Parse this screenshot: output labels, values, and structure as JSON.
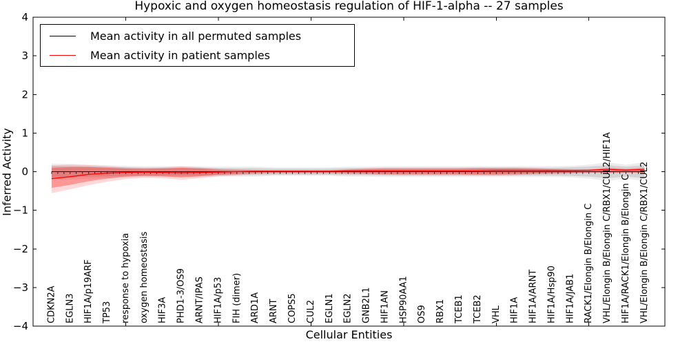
{
  "figure": {
    "title": "Hypoxic and oxygen homeostasis regulation of HIF-1-alpha -- 27 samples",
    "xlabel": "Cellular Entities",
    "ylabel": "Inferred Activity"
  },
  "legend": {
    "position": "upper left",
    "entries": [
      {
        "label": "Mean activity in all permuted samples",
        "color": "#000000"
      },
      {
        "label": "Mean activity in patient samples",
        "color": "#ff0000"
      }
    ]
  },
  "chart_data": {
    "type": "line",
    "title": "Hypoxic and oxygen homeostasis regulation of HIF-1-alpha -- 27 samples",
    "xlabel": "Cellular Entities",
    "ylabel": "Inferred Activity",
    "ylim": [
      -4,
      4
    ],
    "xlim": [
      0,
      34.1
    ],
    "grid": false,
    "legend_position": "upper left",
    "yticks": [
      {
        "v": 4,
        "label": "4"
      },
      {
        "v": 3,
        "label": "3"
      },
      {
        "v": 2,
        "label": "2"
      },
      {
        "v": 1,
        "label": "1"
      },
      {
        "v": 0,
        "label": "0"
      },
      {
        "v": -1,
        "label": "−1"
      },
      {
        "v": -2,
        "label": "−2"
      },
      {
        "v": -3,
        "label": "−3"
      },
      {
        "v": -4,
        "label": "−4"
      }
    ],
    "xtick_positions": [
      5,
      10,
      15,
      20,
      25,
      30
    ],
    "zero_line_tick_count": 97,
    "categories": [
      "CDKN2A",
      "EGLN3",
      "HIF1A/p19ARF",
      "TP53",
      "response to hypoxia",
      "oxygen homeostasis",
      "HIF3A",
      "PHD1-3/OS9",
      "ARNT/IPAS",
      "HIF1A/p53",
      "FIH (dimer)",
      "ARD1A",
      "ARNT",
      "COPS5",
      "CUL2",
      "EGLN1",
      "EGLN2",
      "GNB2L1",
      "HIF1AN",
      "HSP90AA1",
      "OS9",
      "RBX1",
      "TCEB1",
      "TCEB2",
      "VHL",
      "HIF1A",
      "HIF1A/ARNT",
      "HIF1A/Hsp90",
      "HIF1A/JAB1",
      "RACK1/Elongin B/Elongin C",
      "VHL/Elongin B/Elongin C/RBX1/CUL2/HIF1A",
      "HIF1A/RACK1/Elongin B/Elongin C",
      "VHL/Elongin B/Elongin C/RBX1/CUL2"
    ],
    "series": [
      {
        "name": "Mean activity in all permuted samples",
        "color": "#000000",
        "values": [
          0,
          0,
          0,
          0,
          0,
          0,
          0,
          0,
          0,
          0,
          0,
          0,
          0,
          0,
          0,
          0,
          0,
          0,
          0,
          0,
          0,
          0,
          0,
          0,
          0,
          0,
          0,
          0,
          0,
          0,
          0,
          0,
          0
        ],
        "band_inner": {
          "fill": "rgba(0,0,0,0.10)",
          "upper": [
            0.15,
            0.14,
            0.13,
            0.12,
            0.11,
            0.1,
            0.1,
            0.1,
            0.1,
            0.09,
            0.09,
            0.09,
            0.08,
            0.08,
            0.08,
            0.08,
            0.09,
            0.09,
            0.1,
            0.1,
            0.1,
            0.1,
            0.1,
            0.1,
            0.1,
            0.1,
            0.1,
            0.1,
            0.11,
            0.13,
            0.17,
            0.13,
            0.17
          ],
          "lower": [
            -0.15,
            -0.14,
            -0.13,
            -0.12,
            -0.11,
            -0.1,
            -0.1,
            -0.1,
            -0.1,
            -0.09,
            -0.09,
            -0.09,
            -0.08,
            -0.08,
            -0.08,
            -0.08,
            -0.09,
            -0.09,
            -0.1,
            -0.1,
            -0.1,
            -0.1,
            -0.1,
            -0.1,
            -0.1,
            -0.1,
            -0.1,
            -0.1,
            -0.11,
            -0.13,
            -0.17,
            -0.13,
            -0.17
          ]
        },
        "band_outer": {
          "fill": "rgba(0,0,0,0.07)",
          "upper": [
            0.21,
            0.2,
            0.18,
            0.17,
            0.15,
            0.14,
            0.14,
            0.14,
            0.14,
            0.13,
            0.13,
            0.13,
            0.11,
            0.11,
            0.11,
            0.11,
            0.13,
            0.13,
            0.14,
            0.14,
            0.14,
            0.14,
            0.14,
            0.14,
            0.14,
            0.14,
            0.14,
            0.14,
            0.15,
            0.18,
            0.24,
            0.18,
            0.24
          ],
          "lower": [
            -0.21,
            -0.2,
            -0.18,
            -0.17,
            -0.15,
            -0.14,
            -0.14,
            -0.14,
            -0.14,
            -0.13,
            -0.13,
            -0.13,
            -0.11,
            -0.11,
            -0.11,
            -0.11,
            -0.13,
            -0.13,
            -0.14,
            -0.14,
            -0.14,
            -0.14,
            -0.14,
            -0.14,
            -0.14,
            -0.14,
            -0.14,
            -0.14,
            -0.15,
            -0.18,
            -0.24,
            -0.18,
            -0.24
          ]
        }
      },
      {
        "name": "Mean activity in patient samples",
        "color": "#ff0000",
        "values": [
          -0.18,
          -0.13,
          -0.07,
          -0.04,
          -0.02,
          -0.01,
          -0.02,
          -0.03,
          -0.02,
          -0.01,
          0.0,
          0.01,
          0.01,
          0.01,
          0.01,
          0.01,
          0.02,
          0.02,
          0.02,
          0.02,
          0.02,
          0.02,
          0.02,
          0.02,
          0.03,
          0.03,
          0.03,
          0.03,
          0.03,
          0.04,
          0.06,
          0.04,
          0.06
        ],
        "band_inner": {
          "fill": "rgba(255,0,0,0.30)",
          "upper": [
            0.1,
            0.12,
            0.12,
            0.1,
            0.08,
            0.07,
            0.08,
            0.1,
            0.08,
            0.05,
            0.04,
            0.03,
            0.03,
            0.03,
            0.03,
            0.03,
            0.05,
            0.06,
            0.07,
            0.07,
            0.07,
            0.07,
            0.07,
            0.08,
            0.08,
            0.08,
            0.07,
            0.06,
            0.05,
            0.04,
            0.08,
            0.06,
            0.08
          ],
          "lower": [
            -0.42,
            -0.34,
            -0.25,
            -0.18,
            -0.13,
            -0.11,
            -0.12,
            -0.15,
            -0.12,
            -0.08,
            -0.06,
            -0.04,
            -0.03,
            -0.03,
            -0.03,
            -0.03,
            -0.04,
            -0.05,
            -0.06,
            -0.06,
            -0.06,
            -0.06,
            -0.06,
            -0.07,
            -0.07,
            -0.06,
            -0.05,
            -0.04,
            -0.03,
            -0.02,
            -0.02,
            -0.02,
            -0.02
          ]
        },
        "band_outer": {
          "fill": "rgba(255,0,0,0.15)",
          "upper": [
            0.16,
            0.18,
            0.17,
            0.14,
            0.11,
            0.1,
            0.11,
            0.14,
            0.11,
            0.08,
            0.06,
            0.05,
            0.04,
            0.04,
            0.04,
            0.04,
            0.07,
            0.09,
            0.1,
            0.1,
            0.1,
            0.1,
            0.1,
            0.11,
            0.11,
            0.11,
            0.1,
            0.08,
            0.07,
            0.05,
            0.11,
            0.08,
            0.11
          ],
          "lower": [
            -0.56,
            -0.46,
            -0.35,
            -0.26,
            -0.19,
            -0.16,
            -0.17,
            -0.21,
            -0.17,
            -0.12,
            -0.09,
            -0.06,
            -0.05,
            -0.05,
            -0.05,
            -0.05,
            -0.06,
            -0.07,
            -0.08,
            -0.09,
            -0.09,
            -0.09,
            -0.09,
            -0.1,
            -0.1,
            -0.09,
            -0.07,
            -0.06,
            -0.05,
            -0.03,
            -0.03,
            -0.03,
            -0.03
          ]
        }
      }
    ]
  }
}
